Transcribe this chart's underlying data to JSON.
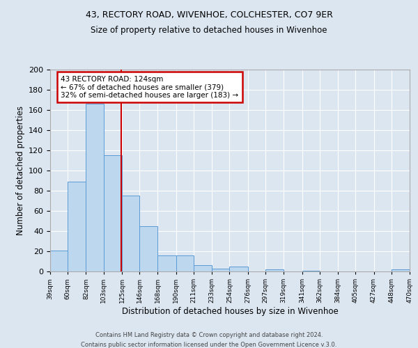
{
  "title1": "43, RECTORY ROAD, WIVENHOE, COLCHESTER, CO7 9ER",
  "title2": "Size of property relative to detached houses in Wivenhoe",
  "xlabel": "Distribution of detached houses by size in Wivenhoe",
  "ylabel": "Number of detached properties",
  "bar_values": [
    21,
    89,
    166,
    115,
    75,
    45,
    16,
    16,
    6,
    3,
    5,
    0,
    2,
    0,
    1,
    0,
    0,
    0,
    0,
    2
  ],
  "bin_edges": [
    39,
    60,
    82,
    103,
    125,
    146,
    168,
    190,
    211,
    233,
    254,
    276,
    297,
    319,
    341,
    362,
    384,
    405,
    427,
    448,
    470
  ],
  "tick_labels": [
    "39sqm",
    "60sqm",
    "82sqm",
    "103sqm",
    "125sqm",
    "146sqm",
    "168sqm",
    "190sqm",
    "211sqm",
    "233sqm",
    "254sqm",
    "276sqm",
    "297sqm",
    "319sqm",
    "341sqm",
    "362sqm",
    "384sqm",
    "405sqm",
    "427sqm",
    "448sqm",
    "470sqm"
  ],
  "bar_color": "#bdd7ee",
  "bar_edgecolor": "#5b9bd5",
  "vline_x": 124,
  "vline_color": "#cc0000",
  "ylim": [
    0,
    200
  ],
  "yticks": [
    0,
    20,
    40,
    60,
    80,
    100,
    120,
    140,
    160,
    180,
    200
  ],
  "annotation_title": "43 RECTORY ROAD: 124sqm",
  "annotation_line1": "← 67% of detached houses are smaller (379)",
  "annotation_line2": "32% of semi-detached houses are larger (183) →",
  "annotation_box_color": "#cc0000",
  "background_color": "#dce6f1",
  "plot_bg_color": "#dce6f1",
  "footer1": "Contains HM Land Registry data © Crown copyright and database right 2024.",
  "footer2": "Contains public sector information licensed under the Open Government Licence v.3.0."
}
